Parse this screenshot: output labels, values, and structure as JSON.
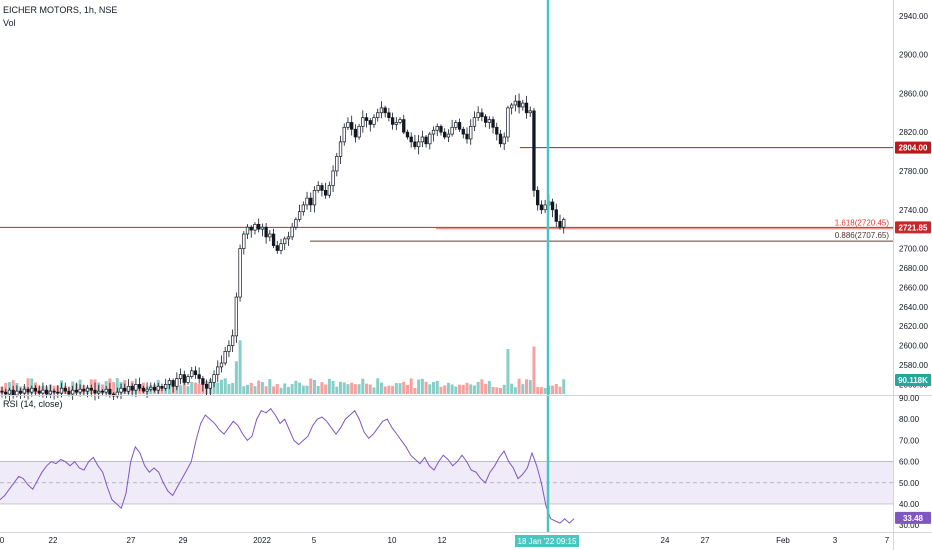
{
  "header": {
    "symbol_line": "EICHER MOTORS, 1h, NSE",
    "volume_label": "Vol"
  },
  "rsi": {
    "label": "RSI (14, close)",
    "value_tag": "33.48",
    "band_upper": 60,
    "band_lower": 40,
    "mid": 50,
    "ticks": [
      "90.00",
      "80.00",
      "70.00",
      "60.00",
      "50.00",
      "40.00",
      "30.00"
    ],
    "values": [
      42,
      44,
      47,
      50,
      53,
      52,
      49,
      47,
      51,
      55,
      58,
      60,
      59,
      61,
      60,
      58,
      60,
      57,
      56,
      60,
      62,
      58,
      55,
      48,
      42,
      40,
      38,
      45,
      60,
      67,
      64,
      58,
      55,
      57,
      55,
      50,
      46,
      44,
      48,
      52,
      56,
      60,
      70,
      78,
      82,
      80,
      78,
      75,
      73,
      76,
      79,
      77,
      73,
      70,
      72,
      80,
      84,
      83,
      85,
      82,
      78,
      80,
      75,
      70,
      68,
      70,
      72,
      77,
      80,
      81,
      79,
      76,
      73,
      76,
      80,
      82,
      84,
      80,
      74,
      71,
      73,
      76,
      79,
      80,
      76,
      73,
      70,
      67,
      63,
      61,
      59,
      62,
      58,
      56,
      60,
      63,
      61,
      58,
      60,
      63,
      60,
      56,
      55,
      52,
      50,
      55,
      58,
      62,
      65,
      60,
      57,
      52,
      54,
      57,
      64,
      58,
      50,
      39,
      33,
      32,
      31,
      33,
      31,
      33
    ]
  },
  "price_axis": {
    "ticks": [
      "2940.00",
      "2900.00",
      "2860.00",
      "2820.00",
      "2780.00",
      "2740.00",
      "2700.00",
      "2680.00",
      "2660.00",
      "2640.00",
      "2620.00",
      "2600.00",
      "2580.00",
      "2560.00"
    ],
    "current_price_tag": "2721.85",
    "level_tag": "2804.00",
    "volume_tag": "90.118K",
    "current_price_color": "#c62828",
    "level_color": "#b71c1c",
    "volume_color": "#26a69a"
  },
  "overlays": {
    "fib_1618_label": "1.618(2720.45)",
    "fib_0886_label": "0.886(2707.65)",
    "highlight_color": "#4ac6c0"
  },
  "time_axis": {
    "labels": [
      "0",
      "22",
      "27",
      "29",
      "2022",
      "5",
      "10",
      "12",
      "24",
      "27",
      "Feb",
      "3",
      "7"
    ],
    "crosshair_date": "18 Jan '22",
    "crosshair_time": "09:15"
  },
  "chart_data": {
    "type": "candlestick",
    "title": "EICHER MOTORS, 1h, NSE",
    "y_range": [
      2548,
      2948
    ],
    "horizontal_levels": [
      2804.0,
      2721.85,
      2720.45,
      2707.65
    ],
    "close": [
      2552,
      2550,
      2554,
      2549,
      2553,
      2551,
      2555,
      2552,
      2556,
      2553,
      2551,
      2554,
      2550,
      2553,
      2552,
      2551,
      2556,
      2553,
      2550,
      2554,
      2552,
      2555,
      2553,
      2556,
      2554,
      2551,
      2553,
      2552,
      2555,
      2550,
      2548,
      2552,
      2556,
      2553,
      2558,
      2554,
      2560,
      2556,
      2553,
      2555,
      2557,
      2554,
      2558,
      2556,
      2560,
      2564,
      2558,
      2566,
      2570,
      2562,
      2568,
      2574,
      2570,
      2566,
      2560,
      2556,
      2562,
      2570,
      2578,
      2582,
      2594,
      2600,
      2610,
      2650,
      2700,
      2715,
      2722,
      2719,
      2725,
      2720,
      2722,
      2712,
      2715,
      2703,
      2698,
      2705,
      2710,
      2712,
      2722,
      2730,
      2738,
      2745,
      2752,
      2745,
      2760,
      2765,
      2760,
      2755,
      2765,
      2780,
      2795,
      2810,
      2825,
      2830,
      2823,
      2815,
      2826,
      2835,
      2832,
      2828,
      2835,
      2840,
      2845,
      2840,
      2835,
      2828,
      2830,
      2833,
      2820,
      2815,
      2810,
      2805,
      2810,
      2815,
      2808,
      2818,
      2822,
      2826,
      2820,
      2815,
      2818,
      2825,
      2830,
      2823,
      2818,
      2813,
      2826,
      2835,
      2840,
      2836,
      2830,
      2833,
      2825,
      2818,
      2808,
      2815,
      2845,
      2848,
      2852,
      2846,
      2850,
      2840,
      2842,
      2760,
      2745,
      2740,
      2745,
      2748,
      2740,
      2728,
      2722,
      2730
    ]
  }
}
